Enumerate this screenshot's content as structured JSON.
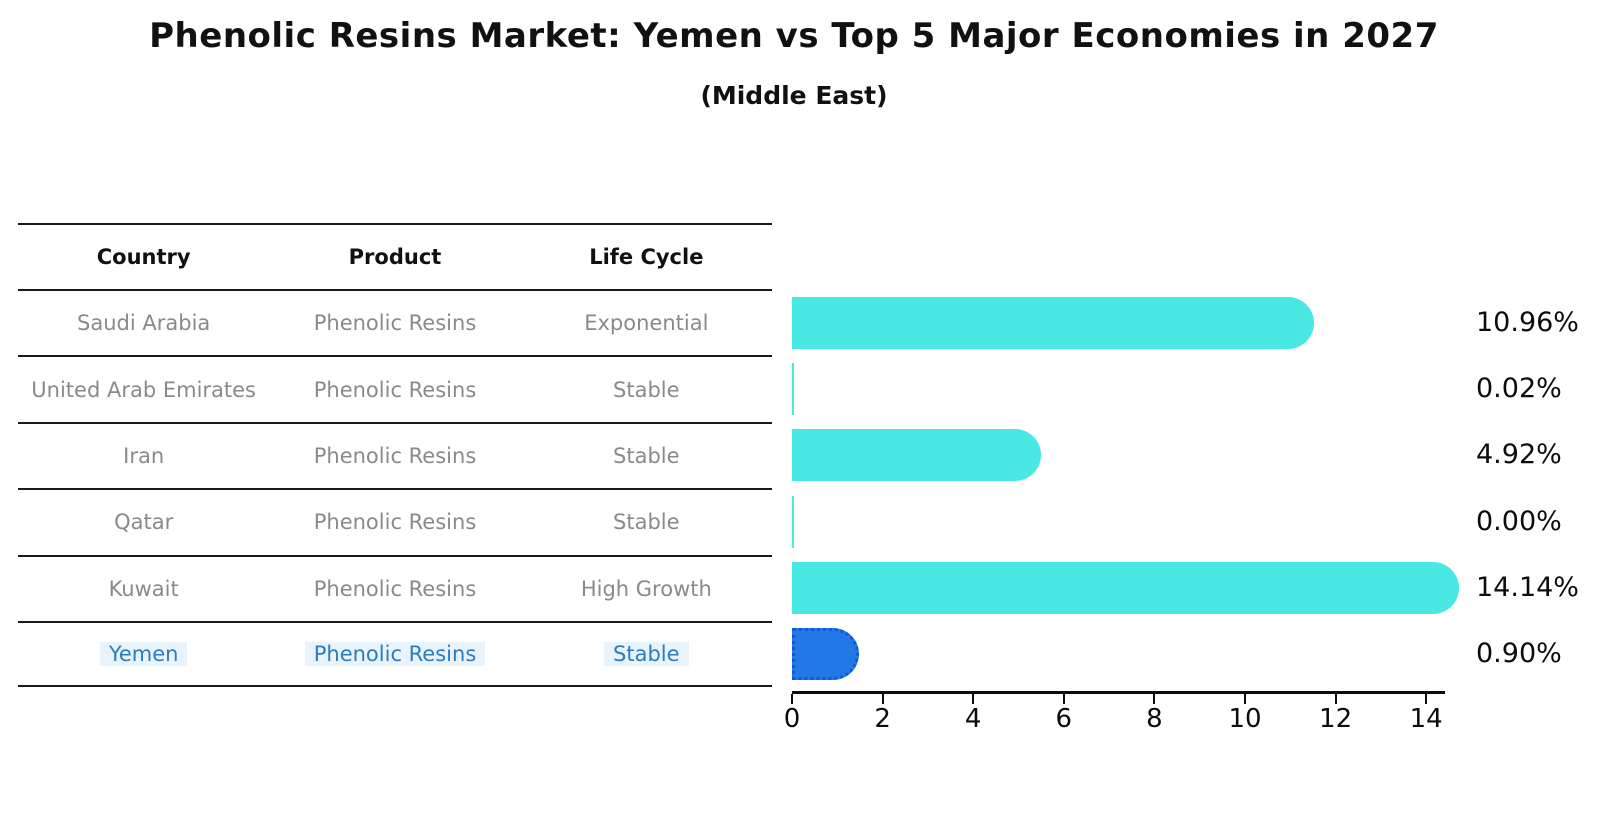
{
  "title": "Phenolic Resins Market: Yemen vs Top 5 Major Economies in 2027",
  "subtitle": "(Middle East)",
  "table": {
    "headers": {
      "country": "Country",
      "product": "Product",
      "life_cycle": "Life Cycle"
    },
    "rows": [
      {
        "country": "Saudi Arabia",
        "product": "Phenolic Resins",
        "life_cycle": "Exponential",
        "highlight": false
      },
      {
        "country": "United Arab Emirates",
        "product": "Phenolic Resins",
        "life_cycle": "Stable",
        "highlight": false
      },
      {
        "country": "Iran",
        "product": "Phenolic Resins",
        "life_cycle": "Stable",
        "highlight": false
      },
      {
        "country": "Qatar",
        "product": "Phenolic Resins",
        "life_cycle": "Stable",
        "highlight": false
      },
      {
        "country": "Kuwait",
        "product": "Phenolic Resins",
        "life_cycle": "High Growth",
        "highlight": false
      },
      {
        "country": "Yemen",
        "product": "Phenolic Resins",
        "life_cycle": "Stable",
        "highlight": true
      }
    ]
  },
  "chart_data": {
    "type": "bar",
    "orientation": "horizontal",
    "title": "Phenolic Resins Market: Yemen vs Top 5 Major Economies in 2027",
    "subtitle": "(Middle East)",
    "categories": [
      "Saudi Arabia",
      "United Arab Emirates",
      "Iran",
      "Qatar",
      "Kuwait",
      "Yemen"
    ],
    "values": [
      10.96,
      0.02,
      4.92,
      0.0,
      14.14,
      0.9
    ],
    "value_labels": [
      "10.96%",
      "0.02%",
      "4.92%",
      "0.00%",
      "14.14%",
      "0.90%"
    ],
    "x_ticks": [
      0,
      2,
      4,
      6,
      8,
      10,
      12,
      14
    ],
    "xlim": [
      0,
      14.4
    ],
    "xlabel": "",
    "ylabel": "",
    "grid": false,
    "legend": "none",
    "bar_color": "#4AE8E2",
    "highlight_index": 5,
    "highlight_color": "#2178E6",
    "highlight_border_color": "#1456D8"
  },
  "colors": {
    "text_primary": "#111111",
    "text_muted": "#8a8a8a",
    "highlight_text": "#2B7CC0",
    "axis": "#0c0c0c"
  }
}
